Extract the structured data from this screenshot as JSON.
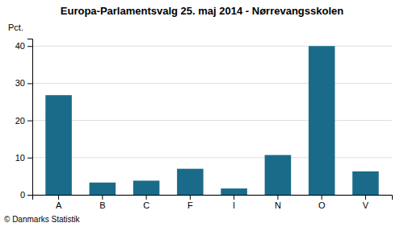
{
  "chart_data": {
    "type": "bar",
    "title": "Europa-Parlamentsvalg 25. maj 2014 - Nørrevangsskolen",
    "categories": [
      "A",
      "B",
      "C",
      "F",
      "I",
      "N",
      "O",
      "V"
    ],
    "values": [
      26.8,
      3.3,
      3.8,
      7.0,
      1.7,
      10.7,
      40.0,
      6.3
    ],
    "color": "#1a6b8a",
    "ylabel": "Pct.",
    "ylim": [
      0,
      42
    ],
    "yticks": [
      0,
      10,
      20,
      30,
      40
    ],
    "grid": true,
    "annotations": [
      "© Danmarks Statistik"
    ]
  }
}
